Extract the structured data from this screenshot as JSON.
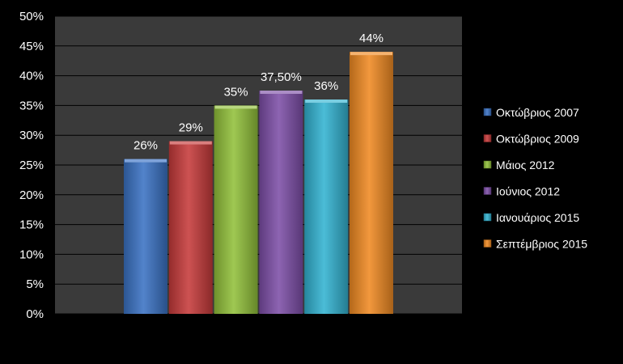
{
  "chart_data": {
    "type": "bar",
    "title": "",
    "xlabel": "",
    "ylabel": "",
    "ylim": [
      0,
      50
    ],
    "yticks": [
      "0%",
      "5%",
      "10%",
      "15%",
      "20%",
      "25%",
      "30%",
      "35%",
      "40%",
      "45%",
      "50%"
    ],
    "grid": true,
    "legend_position": "right",
    "categories": [
      "Οκτώβριος 2007",
      "Οκτώβριος 2009",
      "Μάιος 2012",
      "Ιούνιος 2012",
      "Ιανουάριος 2015",
      "Σεπτέμβριος 2015"
    ],
    "values": [
      26,
      29,
      35,
      37.5,
      36,
      44
    ],
    "value_labels": [
      "26%",
      "29%",
      "35%",
      "37,50%",
      "36%",
      "44%"
    ],
    "colors": [
      "#3a72c4",
      "#c63a3a",
      "#92c13a",
      "#7d4fa8",
      "#33b3d1",
      "#f08a23"
    ],
    "plot_background": "#3a3a3a",
    "gridline_color": "#000000"
  }
}
